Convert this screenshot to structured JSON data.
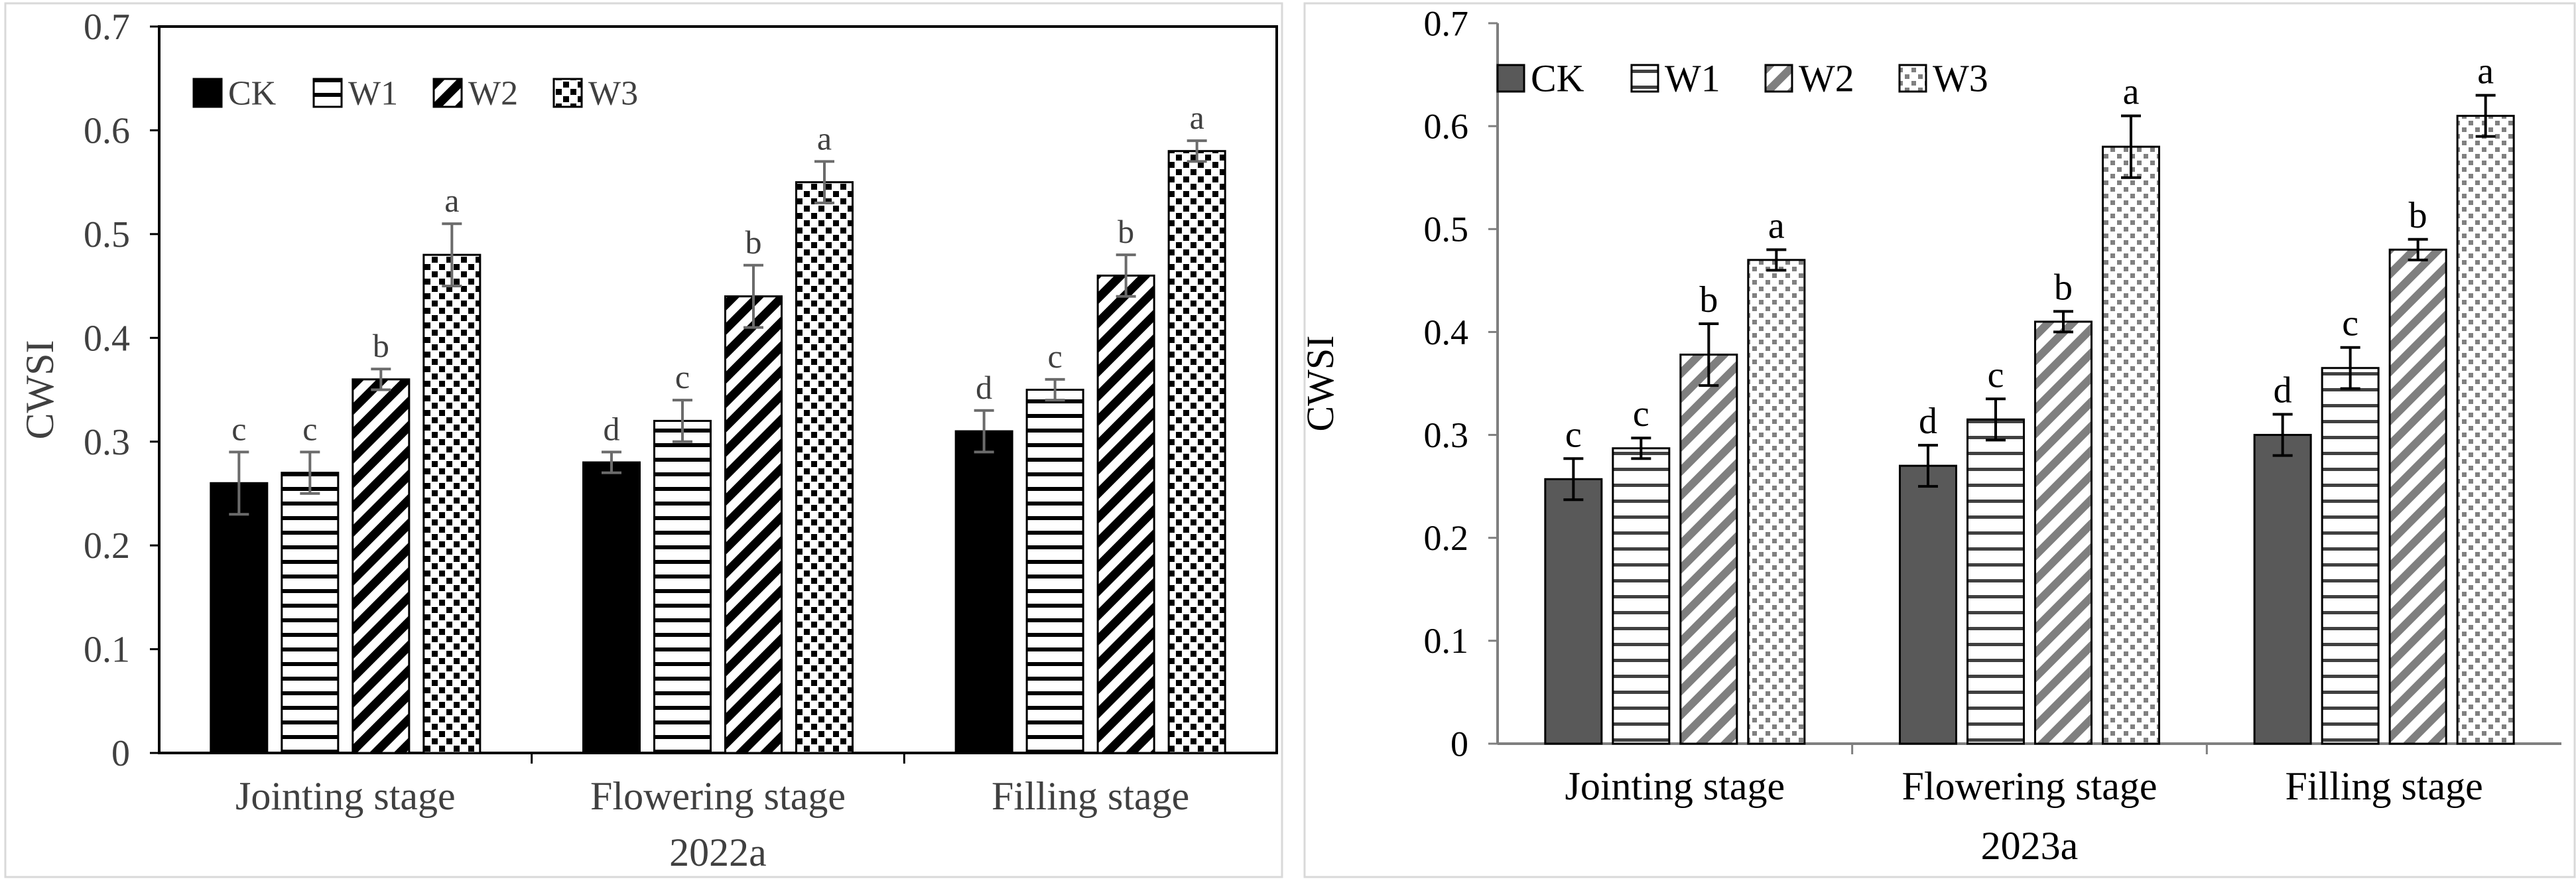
{
  "chart_data": [
    {
      "type": "bar",
      "title": "",
      "caption": "2022a",
      "xlabel": "",
      "ylabel": "CWSI",
      "ylim": [
        0,
        0.7
      ],
      "yticks": [
        0,
        0.1,
        0.2,
        0.3,
        0.4,
        0.5,
        0.6,
        0.7
      ],
      "ytick_labels": [
        "0",
        "0.1",
        "0.2",
        "0.3",
        "0.4",
        "0.5",
        "0.6",
        "0.7"
      ],
      "categories": [
        "Jointing stage",
        "Flowering stage",
        "Filling stage"
      ],
      "legend_position": "top-left",
      "series": [
        {
          "name": "CK",
          "pattern": "solid",
          "values": [
            0.26,
            0.28,
            0.31
          ],
          "errors": [
            0.03,
            0.01,
            0.02
          ],
          "letters": [
            "c",
            "d",
            "d"
          ]
        },
        {
          "name": "W1",
          "pattern": "horizontal",
          "values": [
            0.27,
            0.32,
            0.35
          ],
          "errors": [
            0.02,
            0.02,
            0.01
          ],
          "letters": [
            "c",
            "c",
            "c"
          ]
        },
        {
          "name": "W2",
          "pattern": "diagonal",
          "values": [
            0.36,
            0.44,
            0.46
          ],
          "errors": [
            0.01,
            0.03,
            0.02
          ],
          "letters": [
            "b",
            "b",
            "b"
          ]
        },
        {
          "name": "W3",
          "pattern": "dots",
          "values": [
            0.48,
            0.55,
            0.58
          ],
          "errors": [
            0.03,
            0.02,
            0.01
          ],
          "letters": [
            "a",
            "a",
            "a"
          ]
        }
      ],
      "colors": {
        "fill": "#000000",
        "text": "#404040",
        "axis": "#000000",
        "error": "#6b6b6b"
      }
    },
    {
      "type": "bar",
      "title": "",
      "caption": "2023a",
      "xlabel": "",
      "ylabel": "CWSI",
      "ylim": [
        0,
        0.7
      ],
      "yticks": [
        0,
        0.1,
        0.2,
        0.3,
        0.4,
        0.5,
        0.6,
        0.7
      ],
      "ytick_labels": [
        "0",
        "0.1",
        "0.2",
        "0.3",
        "0.4",
        "0.5",
        "0.6",
        "0.7"
      ],
      "categories": [
        "Jointing stage",
        "Flowering stage",
        "Filling stage"
      ],
      "legend_position": "top-left",
      "series": [
        {
          "name": "CK",
          "pattern": "solid",
          "values": [
            0.257,
            0.27,
            0.3
          ],
          "errors": [
            0.02,
            0.02,
            0.02
          ],
          "letters": [
            "c",
            "d",
            "d"
          ]
        },
        {
          "name": "W1",
          "pattern": "horizontal",
          "values": [
            0.287,
            0.315,
            0.365
          ],
          "errors": [
            0.01,
            0.02,
            0.02
          ],
          "letters": [
            "c",
            "c",
            "c"
          ]
        },
        {
          "name": "W2",
          "pattern": "diagonal",
          "values": [
            0.378,
            0.41,
            0.48
          ],
          "errors": [
            0.03,
            0.01,
            0.01
          ],
          "letters": [
            "b",
            "b",
            "b"
          ]
        },
        {
          "name": "W3",
          "pattern": "dots",
          "values": [
            0.47,
            0.58,
            0.61
          ],
          "errors": [
            0.01,
            0.03,
            0.02
          ],
          "letters": [
            "a",
            "a",
            "a"
          ]
        }
      ],
      "colors": {
        "fill": "#595959",
        "text": "#000000",
        "axis": "#7f7f7f",
        "error": "#000000"
      }
    }
  ]
}
